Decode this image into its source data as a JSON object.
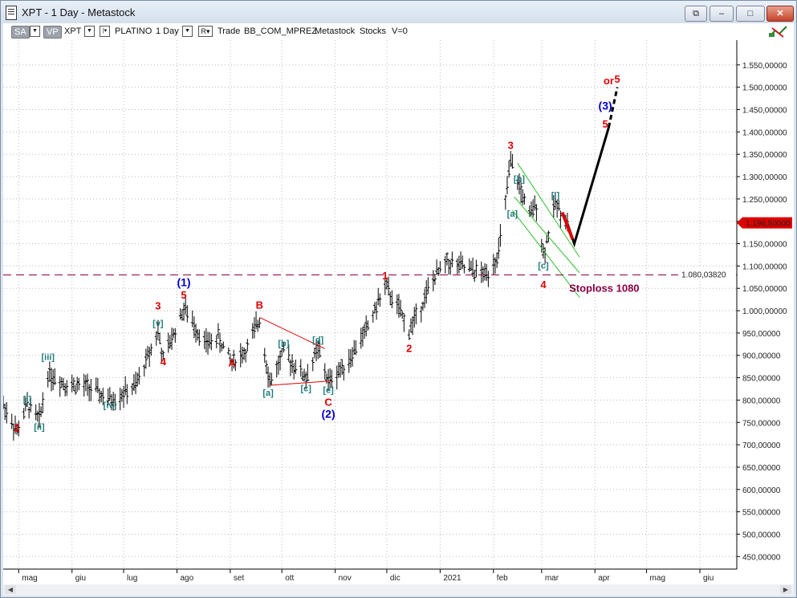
{
  "window": {
    "title": "XPT - 1 Day - Metastock",
    "buttons": {
      "restore_down": "⧉",
      "minimize": "–",
      "maximize": "□",
      "close": "✕"
    }
  },
  "toolbar": {
    "sa": "SA",
    "vp": "VP",
    "symbol": "XPT",
    "name": "PLATINO",
    "period": "1 Day",
    "r_label": "R",
    "trade": "Trade",
    "system": "BB_COM_MPREZ",
    "source": "Metastock",
    "type": "Stocks",
    "v": "V=0"
  },
  "chart_data": {
    "type": "ohlc",
    "symbol": "XPT",
    "x_labels": [
      "mag",
      "giu",
      "lug",
      "ago",
      "set",
      "ott",
      "nov",
      "dic",
      "2021",
      "feb",
      "mar",
      "apr",
      "mag",
      "giu"
    ],
    "y_ticks": [
      450,
      500,
      550,
      600,
      650,
      700,
      750,
      800,
      850,
      900,
      950,
      1000,
      1050,
      1100,
      1150,
      1200,
      1250,
      1300,
      1350,
      1400,
      1450,
      1500,
      1550
    ],
    "y_tick_labels": [
      "450,00000",
      "500,00000",
      "550,00000",
      "600,00000",
      "650,00000",
      "700,00000",
      "750,00000",
      "800,00000",
      "850,00000",
      "900,00000",
      "950,00000",
      "1.000,00000",
      "1.050,00000",
      "1.100,00000",
      "1.150,00000",
      "1.200,00000",
      "1.250,00000",
      "1.300,00000",
      "1.350,00000",
      "1.400,00000",
      "1.450,00000",
      "1.500,00000",
      "1.550,00000"
    ],
    "ylim": [
      420,
      1600
    ],
    "last_price": 1196.5,
    "last_price_label": "1.196,50000",
    "stoploss_level": 1080.0382,
    "stoploss_level_label": "1.080,03820",
    "stoploss_text": "Stoploss 1080",
    "grid": true,
    "colors": {
      "bars": "#000000",
      "red": "#dd0000",
      "blue": "#0000cc",
      "teal": "#207a7a",
      "stoploss_line": "#880044",
      "channel": "#2fbf2f"
    },
    "wave_labels": [
      {
        "text": "2",
        "color": "red",
        "x": "2020-04-30",
        "y": 730
      },
      {
        "text": "[i]",
        "color": "teal",
        "x": "2020-05-06",
        "y": 795
      },
      {
        "text": "[ii]",
        "color": "teal",
        "x": "2020-05-13",
        "y": 733
      },
      {
        "text": "[iii]",
        "color": "teal",
        "x": "2020-05-18",
        "y": 890
      },
      {
        "text": "[iv]",
        "color": "teal",
        "x": "2020-06-23",
        "y": 782
      },
      {
        "text": "[v]",
        "color": "teal",
        "x": "2020-07-21",
        "y": 965
      },
      {
        "text": "3",
        "color": "red",
        "x": "2020-07-21",
        "y": 1003
      },
      {
        "text": "4",
        "color": "red",
        "x": "2020-07-24",
        "y": 878
      },
      {
        "text": "5",
        "color": "red",
        "x": "2020-08-05",
        "y": 1027
      },
      {
        "text": "(1)",
        "color": "blue",
        "x": "2020-08-05",
        "y": 1055
      },
      {
        "text": "A",
        "color": "red",
        "x": "2020-09-02",
        "y": 875
      },
      {
        "text": "B",
        "color": "red",
        "x": "2020-09-18",
        "y": 1005
      },
      {
        "text": "[a]",
        "color": "teal",
        "x": "2020-09-23",
        "y": 810
      },
      {
        "text": "[b]",
        "color": "teal",
        "x": "2020-10-02",
        "y": 920
      },
      {
        "text": "[c]",
        "color": "teal",
        "x": "2020-10-15",
        "y": 820
      },
      {
        "text": "[d]",
        "color": "teal",
        "x": "2020-10-22",
        "y": 928
      },
      {
        "text": "[e]",
        "color": "teal",
        "x": "2020-10-28",
        "y": 816
      },
      {
        "text": "C",
        "color": "red",
        "x": "2020-10-28",
        "y": 787
      },
      {
        "text": "(2)",
        "color": "blue",
        "x": "2020-10-28",
        "y": 760
      },
      {
        "text": "1",
        "color": "red",
        "x": "2020-11-30",
        "y": 1070
      },
      {
        "text": "2",
        "color": "red",
        "x": "2020-12-14",
        "y": 908
      },
      {
        "text": "3",
        "color": "red",
        "x": "2021-02-11",
        "y": 1362
      },
      {
        "text": "[b]",
        "color": "teal",
        "x": "2021-02-16",
        "y": 1288
      },
      {
        "text": "[a]",
        "color": "teal",
        "x": "2021-02-12",
        "y": 1210
      },
      {
        "text": "[i]",
        "color": "teal",
        "x": "2021-03-09",
        "y": 1252
      },
      {
        "text": "[c]",
        "color": "teal",
        "x": "2021-03-02",
        "y": 1094
      },
      {
        "text": "4",
        "color": "red",
        "x": "2021-03-02",
        "y": 1050
      },
      {
        "text": "(3)",
        "color": "blue",
        "x": "2021-04-07",
        "y": 1450
      },
      {
        "text": "5",
        "color": "red",
        "x": "2021-04-07",
        "y": 1410
      },
      {
        "text": "or",
        "color": "red",
        "x": "2021-04-09",
        "y": 1507
      },
      {
        "text": "5",
        "color": "red",
        "x": "2021-04-14",
        "y": 1510
      }
    ],
    "trendlines": [
      {
        "name": "triangle-upper",
        "color": "red",
        "points": [
          [
            "2020-09-18",
            985
          ],
          [
            "2020-10-26",
            915
          ]
        ]
      },
      {
        "name": "triangle-lower",
        "color": "red",
        "points": [
          [
            "2020-09-24",
            833
          ],
          [
            "2020-10-30",
            843
          ]
        ]
      },
      {
        "name": "channel-upper",
        "color": "green",
        "points": [
          [
            "2021-02-15",
            1330
          ],
          [
            "2021-03-23",
            1120
          ]
        ]
      },
      {
        "name": "channel-mid",
        "color": "green",
        "points": [
          [
            "2021-02-13",
            1255
          ],
          [
            "2021-03-23",
            1085
          ]
        ]
      },
      {
        "name": "channel-lower",
        "color": "green",
        "points": [
          [
            "2021-02-12",
            1225
          ],
          [
            "2021-03-23",
            1030
          ]
        ]
      },
      {
        "name": "projection-solid",
        "color": "black",
        "points": [
          [
            "2021-03-16",
            1195
          ],
          [
            "2021-03-20",
            1150
          ],
          [
            "2021-04-09",
            1410
          ]
        ]
      },
      {
        "name": "projection-dashed",
        "color": "black",
        "points": [
          [
            "2021-04-09",
            1410
          ],
          [
            "2021-04-14",
            1500
          ]
        ]
      },
      {
        "name": "current-wave",
        "color": "red",
        "points": [
          [
            "2021-03-13",
            1220
          ],
          [
            "2021-03-19",
            1160
          ]
        ]
      }
    ]
  }
}
